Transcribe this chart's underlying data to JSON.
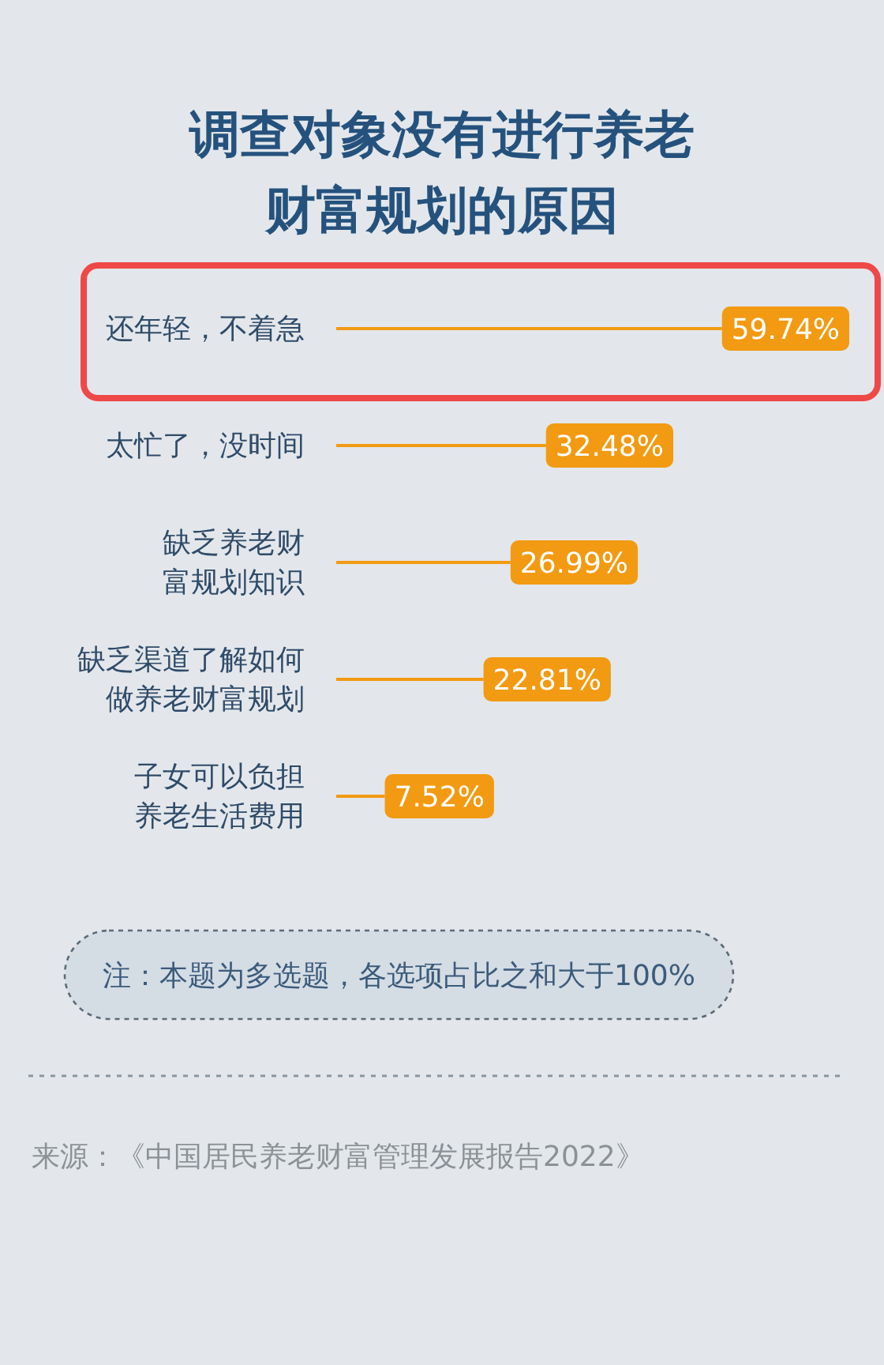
{
  "chart_data": {
    "type": "bar",
    "orientation": "horizontal",
    "title": "调查对象没有进行养老财富规划的原因",
    "categories": [
      "还年轻，不着急",
      "太忙了，没时间",
      "缺乏养老财富规划知识",
      "缺乏渠道了解如何做养老财富规划",
      "子女可以负担养老生活费用"
    ],
    "values": [
      59.74,
      32.48,
      26.99,
      22.81,
      7.52
    ],
    "value_labels": [
      "59.74%",
      "32.48%",
      "26.99%",
      "22.81%",
      "7.52%"
    ],
    "color": "#f29a12",
    "annotations": [
      "注：本题为多选题，各选项占比之和大于100%",
      "来源：《中国居民养老财富管理发展报告2022》"
    ]
  }
}
